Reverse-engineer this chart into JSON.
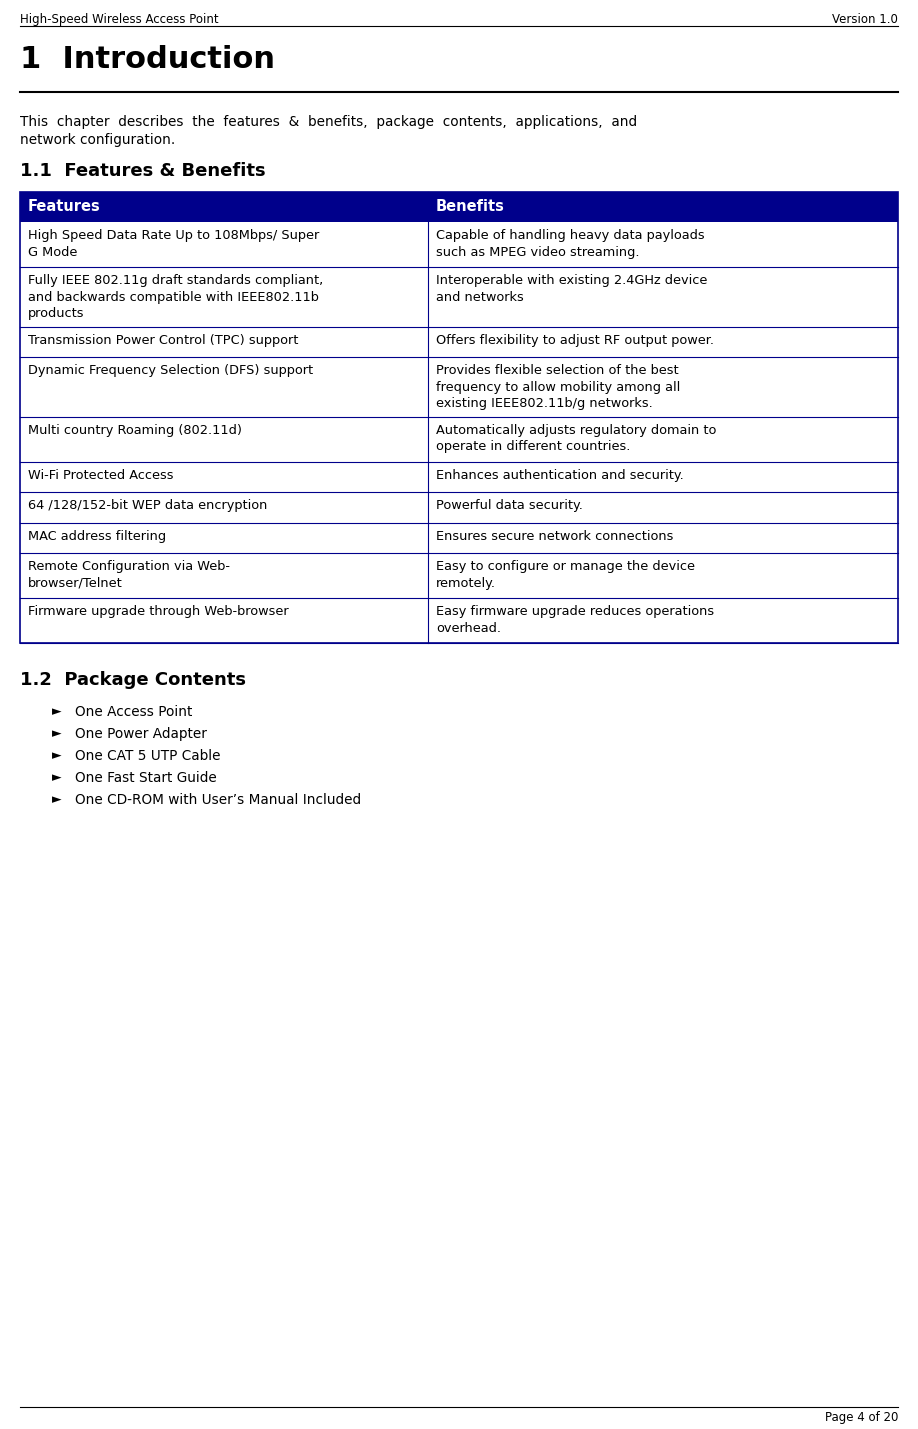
{
  "header_left": "High-Speed Wireless Access Point",
  "header_right": "Version 1.0",
  "footer_right": "Page 4 of 20",
  "title": "1  Introduction",
  "intro_line1": "This  chapter  describes  the  features  &  benefits,  package  contents,  applications,  and",
  "intro_line2": "network configuration.",
  "section_11": "1.1  Features & Benefits",
  "section_12": "1.2  Package Contents",
  "table_header_bg": "#00008B",
  "table_header_color": "#FFFFFF",
  "table_col1_header": "Features",
  "table_col2_header": "Benefits",
  "table_rows": [
    {
      "feat": "High Speed Data Rate Up to 108Mbps/ Super\nG Mode",
      "ben": "Capable of handling heavy data payloads\nsuch as MPEG video streaming."
    },
    {
      "feat": "Fully IEEE 802.11g draft standards compliant,\nand backwards compatible with IEEE802.11b\nproducts",
      "ben": "Interoperable with existing 2.4GHz device\nand networks"
    },
    {
      "feat": "Transmission Power Control (TPC) support",
      "ben": "Offers flexibility to adjust RF output power."
    },
    {
      "feat": "Dynamic Frequency Selection (DFS) support",
      "ben": "Provides flexible selection of the best\nfrequency to allow mobility among all\nexisting IEEE802.11b/g networks."
    },
    {
      "feat": "Multi country Roaming (802.11d)",
      "ben": "Automatically adjusts regulatory domain to\noperate in different countries."
    },
    {
      "feat": "Wi-Fi Protected Access",
      "ben": "Enhances authentication and security."
    },
    {
      "feat": "64 /128/152-bit WEP data encryption",
      "ben": "Powerful data security."
    },
    {
      "feat": "MAC address filtering",
      "ben": "Ensures secure network connections"
    },
    {
      "feat": "Remote Configuration via Web-\nbrowser/Telnet",
      "ben": "Easy to configure or manage the device\nremotely."
    },
    {
      "feat": "Firmware upgrade through Web-browser",
      "ben": "Easy firmware upgrade reduces operations\noverhead."
    }
  ],
  "package_items": [
    "One Access Point",
    "One Power Adapter",
    "One CAT 5 UTP Cable",
    "One Fast Start Guide",
    "One CD-ROM with User’s Manual Included"
  ],
  "bg_color": "#FFFFFF",
  "text_color": "#000000",
  "table_border_color": "#00008B"
}
